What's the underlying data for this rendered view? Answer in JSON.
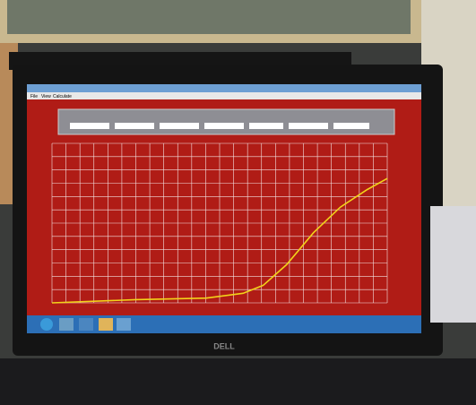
{
  "menu": [
    "File",
    "View",
    "Calculate"
  ],
  "brand": "DELL",
  "chart_data": {
    "type": "line",
    "x": [
      0,
      25,
      46,
      57,
      63,
      70,
      78,
      86,
      94,
      100
    ],
    "series": [
      {
        "color": "#f2d21a",
        "values": [
          0,
          2,
          3,
          6,
          11,
          24,
          44,
          60,
          71,
          78
        ]
      }
    ],
    "xlim": [
      0,
      100
    ],
    "ylim": [
      0,
      100
    ],
    "grid": true,
    "grid_color": "#f3e3e3"
  }
}
